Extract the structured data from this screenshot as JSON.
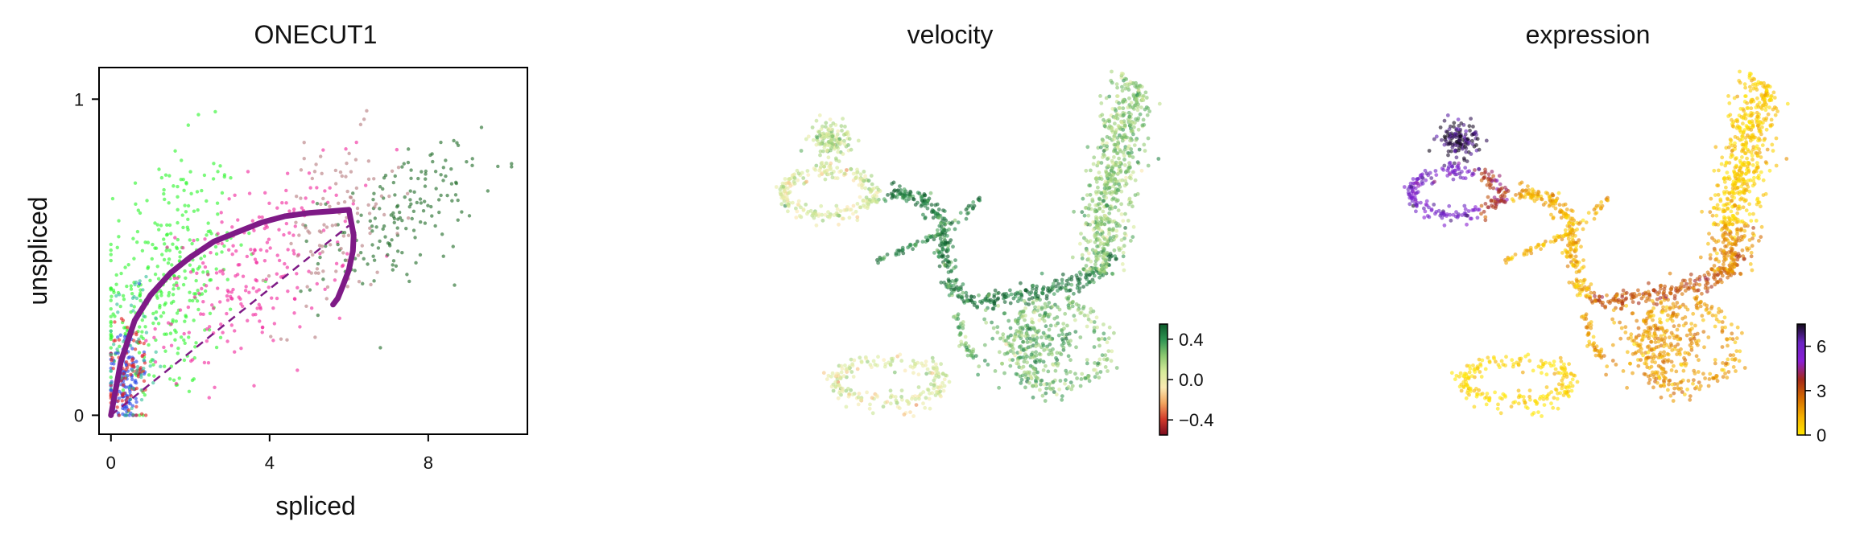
{
  "chart_data": [
    {
      "type": "scatter",
      "title": "ONECUT1",
      "xlabel": "spliced",
      "ylabel": "unspliced",
      "xlim": [
        -0.3,
        10.5
      ],
      "ylim": [
        -0.06,
        1.1
      ],
      "xticks": [
        0,
        4,
        8
      ],
      "xtick_labels": [
        "0",
        "4",
        "8"
      ],
      "yticks": [
        0,
        1
      ],
      "ytick_labels": [
        "0",
        "1"
      ],
      "grid": false,
      "legend": "none",
      "point_colors": [
        "#2cf52c",
        "#f0269c",
        "#1f6b26",
        "#b77c7f",
        "#2947e6",
        "#e02424",
        "#33c09a"
      ],
      "clusters": [
        {
          "color": "#2cf52c",
          "cx": 1.4,
          "cy": 0.42,
          "sx": 0.9,
          "sy": 0.2,
          "n": 340
        },
        {
          "color": "#f0269c",
          "cx": 3.6,
          "cy": 0.45,
          "sx": 1.2,
          "sy": 0.13,
          "n": 220
        },
        {
          "color": "#1f6b26",
          "cx": 7.3,
          "cy": 0.63,
          "sx": 1.0,
          "sy": 0.1,
          "n": 160
        },
        {
          "color": "#b77c7f",
          "cx": 5.7,
          "cy": 0.6,
          "sx": 0.8,
          "sy": 0.13,
          "n": 110
        },
        {
          "color": "#2947e6",
          "cx": 0.35,
          "cy": 0.12,
          "sx": 0.22,
          "sy": 0.08,
          "n": 140
        },
        {
          "color": "#e02424",
          "cx": 0.45,
          "cy": 0.13,
          "sx": 0.3,
          "sy": 0.09,
          "n": 90
        },
        {
          "color": "#33c09a",
          "cx": 0.6,
          "cy": 0.22,
          "sx": 0.4,
          "sy": 0.12,
          "n": 60
        }
      ],
      "fit_curve": {
        "color": "#7e1a86",
        "up_branch_x": [
          0,
          0.25,
          0.6,
          1.0,
          1.5,
          2.0,
          2.6,
          3.2,
          3.8,
          4.4,
          5.0,
          5.5,
          6.0
        ],
        "up_branch_y": [
          0,
          0.17,
          0.3,
          0.38,
          0.45,
          0.5,
          0.55,
          0.58,
          0.61,
          0.63,
          0.64,
          0.645,
          0.65
        ],
        "down_branch_x": [
          6.0,
          6.12,
          6.1,
          6.0,
          5.85,
          5.72,
          5.6
        ],
        "down_branch_y": [
          0.65,
          0.57,
          0.52,
          0.46,
          0.41,
          0.37,
          0.35
        ],
        "steady_state_line": {
          "x": [
            0,
            6.0
          ],
          "y": [
            0,
            0.6
          ]
        }
      }
    },
    {
      "type": "scatter",
      "title": "velocity",
      "colorbar": {
        "ticks": [
          "0.4",
          "0.0",
          "−0.4"
        ],
        "range": [
          -0.55,
          0.55
        ],
        "colors": [
          "#7a0b1e",
          "#d23a2a",
          "#f2a45e",
          "#fbeab2",
          "#d7eb9a",
          "#8cc870",
          "#2f9553",
          "#0c5a2a"
        ]
      },
      "embedding_groups": [
        {
          "name": "loop",
          "value": 0.05
        },
        {
          "name": "top-left",
          "value": 0.15
        },
        {
          "name": "branch",
          "value": 0.45
        },
        {
          "name": "bridge",
          "value": 0.5
        },
        {
          "name": "right-column",
          "value": 0.22
        },
        {
          "name": "mid-cluster",
          "value": 0.3
        },
        {
          "name": "bottom-left",
          "value": 0.05
        },
        {
          "name": "bottom-right",
          "value": 0.25
        }
      ]
    },
    {
      "type": "scatter",
      "title": "expression",
      "colorbar": {
        "ticks": [
          "6",
          "3",
          "0"
        ],
        "range": [
          0,
          7.5
        ],
        "colors": [
          "#ffe600",
          "#f5b000",
          "#d36a00",
          "#a52a1a",
          "#8a1fd6",
          "#6a25c2",
          "#120a1a"
        ]
      },
      "embedding_groups": [
        {
          "name": "loop",
          "value": 5.8
        },
        {
          "name": "top-left",
          "value": 7.2
        },
        {
          "name": "branch",
          "value": 1.2
        },
        {
          "name": "bridge",
          "value": 3.0
        },
        {
          "name": "right-column",
          "value": 0.6
        },
        {
          "name": "mid-cluster",
          "value": 1.6
        },
        {
          "name": "bottom-left",
          "value": 0.3
        },
        {
          "name": "bottom-right",
          "value": 1.6
        }
      ]
    }
  ]
}
